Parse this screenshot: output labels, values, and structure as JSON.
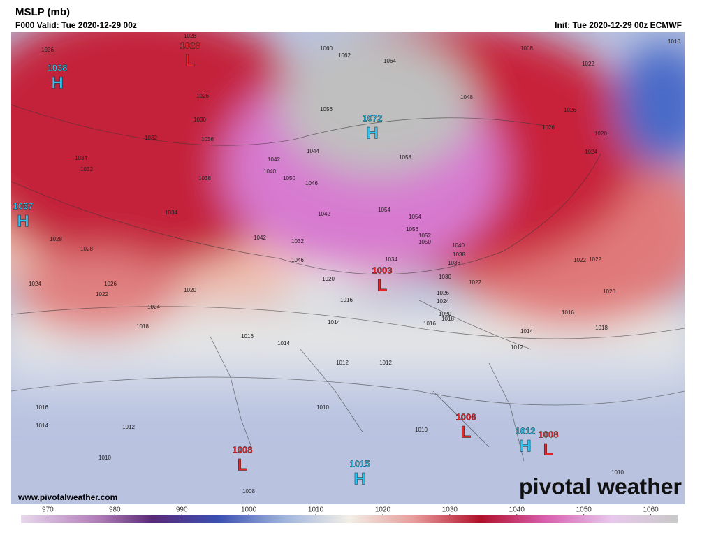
{
  "header": {
    "title": "MSLP (mb)",
    "valid": "F000 Valid: Tue 2020-12-29 00z",
    "init": "Init: Tue 2020-12-29 00z ECMWF"
  },
  "map": {
    "centers": [
      {
        "type": "H",
        "value": "1038"
      },
      {
        "type": "L",
        "value": "1023"
      },
      {
        "type": "H",
        "value": "1072"
      },
      {
        "type": "H",
        "value": "1037"
      },
      {
        "type": "L",
        "value": "1003"
      },
      {
        "type": "L",
        "value": "1006"
      },
      {
        "type": "L",
        "value": "1008"
      },
      {
        "type": "H",
        "value": "1012"
      },
      {
        "type": "L",
        "value": "1008"
      },
      {
        "type": "H",
        "value": "1015"
      }
    ],
    "contour_labels": [
      "1036",
      "1028",
      "1026",
      "1030",
      "1032",
      "1034",
      "1032",
      "1038",
      "1036",
      "1034",
      "1028",
      "1028",
      "1024",
      "1026",
      "1022",
      "1024",
      "1020",
      "1018",
      "1016",
      "1014",
      "1016",
      "1014",
      "1012",
      "1010",
      "1008",
      "1060",
      "1062",
      "1064",
      "1056",
      "1058",
      "1054",
      "1048",
      "1044",
      "1042",
      "1040",
      "1050",
      "1046",
      "1042",
      "1054",
      "1056",
      "1052",
      "1050",
      "1046",
      "1042",
      "1040",
      "1038",
      "1036",
      "1034",
      "1032",
      "1030",
      "1026",
      "1024",
      "1020",
      "1018",
      "1016",
      "1022",
      "1022",
      "1020",
      "1018",
      "1016",
      "1014",
      "1012",
      "1010",
      "1012",
      "1010",
      "1010",
      "1020",
      "1016",
      "1014",
      "1012",
      "1010",
      "1008",
      "1026",
      "1024",
      "1022",
      "1020",
      "1026",
      "1022"
    ],
    "website": "www.pivotalweather.com",
    "brand": "pivotal weather"
  },
  "colorbar": {
    "range": [
      966,
      1064
    ],
    "ticks": [
      970,
      980,
      990,
      1000,
      1010,
      1020,
      1030,
      1040,
      1050,
      1060
    ]
  }
}
